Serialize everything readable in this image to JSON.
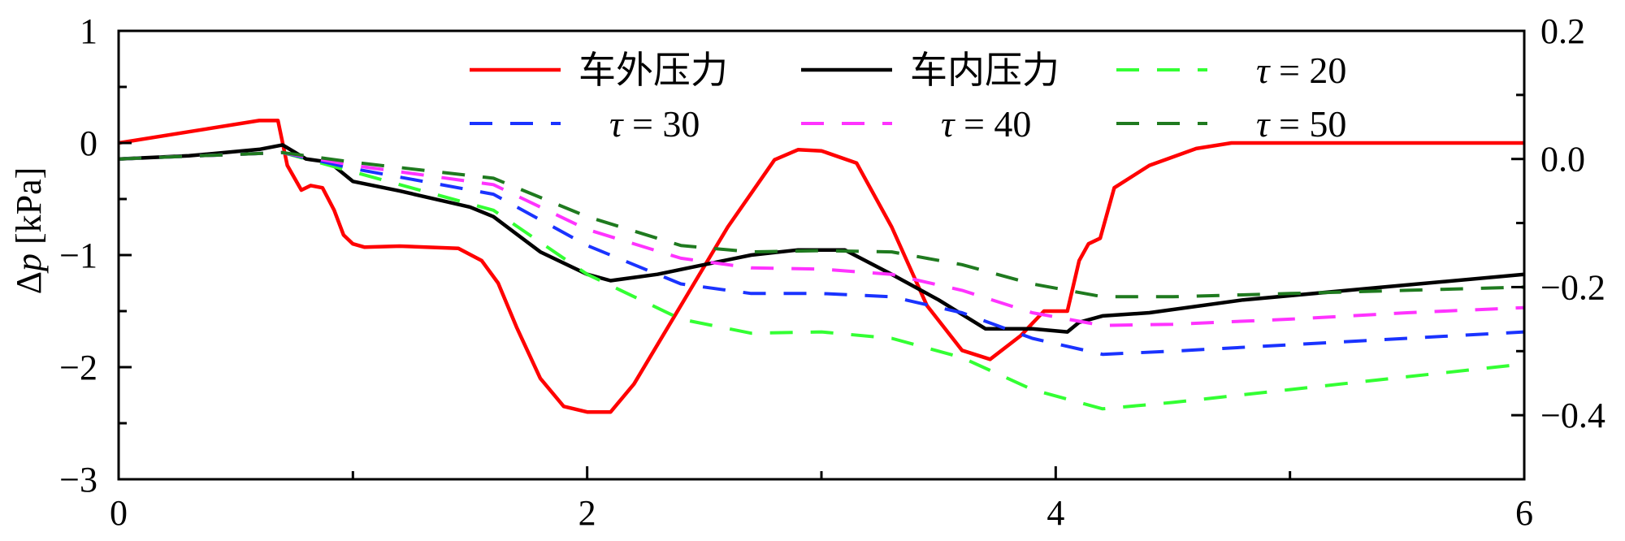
{
  "chart_data": {
    "type": "line",
    "xlabel": "",
    "ylabel_left": "Δp [kPa]",
    "ylabel_right": "",
    "xlim": [
      0,
      6
    ],
    "ylim_left": [
      -3,
      1
    ],
    "ylim_right": [
      -0.5,
      0.2
    ],
    "x_ticks": [
      "0",
      "2",
      "4",
      "6"
    ],
    "x_tick_values": [
      0,
      2,
      4,
      6
    ],
    "y_left_ticks": [
      "1",
      "0",
      "−1",
      "−2",
      "−3"
    ],
    "y_left_tick_values": [
      1,
      0,
      -1,
      -2,
      -3
    ],
    "y_right_ticks": [
      "0.2",
      "0.0",
      "−0.2",
      "−0.4"
    ],
    "y_right_tick_values": [
      0.2,
      0.0,
      -0.2,
      -0.4
    ],
    "grid": false,
    "legend_placement": "top",
    "series": [
      {
        "name": "车外压力",
        "axis": "left",
        "color": "#ff0000",
        "dash": "solid",
        "x": [
          0,
          0.3,
          0.6,
          0.68,
          0.72,
          0.78,
          0.82,
          0.87,
          0.92,
          0.96,
          1.0,
          1.05,
          1.2,
          1.45,
          1.55,
          1.62,
          1.7,
          1.8,
          1.9,
          2.0,
          2.1,
          2.2,
          2.4,
          2.6,
          2.8,
          2.9,
          3.0,
          3.15,
          3.3,
          3.45,
          3.6,
          3.72,
          3.85,
          3.95,
          4.05,
          4.1,
          4.14,
          4.19,
          4.25,
          4.4,
          4.6,
          4.75,
          5.0,
          5.5,
          6.0
        ],
        "values": [
          0.0,
          0.1,
          0.2,
          0.2,
          -0.2,
          -0.42,
          -0.38,
          -0.4,
          -0.6,
          -0.82,
          -0.9,
          -0.93,
          -0.92,
          -0.94,
          -1.05,
          -1.25,
          -1.65,
          -2.1,
          -2.35,
          -2.4,
          -2.4,
          -2.15,
          -1.45,
          -0.75,
          -0.15,
          -0.06,
          -0.07,
          -0.18,
          -0.75,
          -1.45,
          -1.85,
          -1.93,
          -1.72,
          -1.5,
          -1.5,
          -1.05,
          -0.9,
          -0.85,
          -0.4,
          -0.2,
          -0.05,
          0.0,
          0.0,
          0.0,
          0.0
        ]
      },
      {
        "name": "车内压力",
        "axis": "right",
        "color": "#000000",
        "dash": "solid",
        "x": [
          0,
          0.3,
          0.6,
          0.7,
          0.8,
          0.9,
          1.0,
          1.2,
          1.5,
          1.6,
          1.8,
          2.0,
          2.1,
          2.3,
          2.5,
          2.7,
          2.9,
          3.1,
          3.3,
          3.5,
          3.7,
          3.9,
          4.05,
          4.1,
          4.2,
          4.4,
          4.8,
          5.4,
          6.0
        ],
        "values": [
          0.0,
          0.005,
          0.015,
          0.022,
          0.0,
          -0.005,
          -0.035,
          -0.05,
          -0.075,
          -0.09,
          -0.145,
          -0.18,
          -0.19,
          -0.18,
          -0.165,
          -0.15,
          -0.142,
          -0.142,
          -0.18,
          -0.22,
          -0.265,
          -0.265,
          -0.27,
          -0.255,
          -0.245,
          -0.24,
          -0.22,
          -0.2,
          -0.18
        ]
      },
      {
        "name": "τ = 20",
        "axis": "right",
        "color": "#33ff33",
        "dash": "dashed",
        "x": [
          0,
          0.7,
          1.0,
          1.6,
          2.0,
          2.4,
          2.7,
          3.0,
          3.3,
          3.6,
          3.9,
          4.2,
          4.5,
          5.0,
          5.5,
          6.0
        ],
        "values": [
          0.0,
          0.01,
          -0.02,
          -0.08,
          -0.18,
          -0.25,
          -0.272,
          -0.27,
          -0.28,
          -0.31,
          -0.36,
          -0.39,
          -0.38,
          -0.36,
          -0.34,
          -0.32
        ]
      },
      {
        "name": "τ = 30",
        "axis": "right",
        "color": "#1a33ff",
        "dash": "dashed",
        "x": [
          0,
          0.7,
          1.0,
          1.6,
          2.0,
          2.4,
          2.7,
          3.0,
          3.3,
          3.6,
          3.9,
          4.2,
          4.5,
          5.0,
          5.5,
          6.0
        ],
        "values": [
          0.0,
          0.01,
          -0.015,
          -0.055,
          -0.135,
          -0.195,
          -0.21,
          -0.21,
          -0.215,
          -0.24,
          -0.28,
          -0.305,
          -0.3,
          -0.29,
          -0.28,
          -0.27
        ]
      },
      {
        "name": "τ = 40",
        "axis": "right",
        "color": "#ff33ff",
        "dash": "dashed",
        "x": [
          0,
          0.7,
          1.0,
          1.6,
          2.0,
          2.4,
          2.7,
          3.0,
          3.3,
          3.6,
          3.9,
          4.2,
          4.5,
          5.0,
          5.5,
          6.0
        ],
        "values": [
          0.0,
          0.01,
          -0.01,
          -0.04,
          -0.11,
          -0.155,
          -0.17,
          -0.172,
          -0.18,
          -0.205,
          -0.24,
          -0.26,
          -0.258,
          -0.25,
          -0.24,
          -0.232
        ]
      },
      {
        "name": "τ = 50",
        "axis": "right",
        "color": "#1f7a1f",
        "dash": "dashed",
        "x": [
          0,
          0.7,
          1.0,
          1.6,
          2.0,
          2.4,
          2.7,
          3.0,
          3.3,
          3.6,
          3.9,
          4.2,
          4.5,
          5.0,
          5.5,
          6.0
        ],
        "values": [
          0.0,
          0.01,
          -0.005,
          -0.03,
          -0.09,
          -0.135,
          -0.145,
          -0.143,
          -0.145,
          -0.165,
          -0.195,
          -0.215,
          -0.215,
          -0.21,
          -0.205,
          -0.2
        ]
      }
    ]
  },
  "legend": {
    "items": [
      {
        "label": "车外压力",
        "tau": false
      },
      {
        "label": "车内压力",
        "tau": false
      },
      {
        "label": "τ = 20",
        "tau": true
      },
      {
        "label": "τ = 30",
        "tau": true
      },
      {
        "label": "τ = 40",
        "tau": true
      },
      {
        "label": "τ = 50",
        "tau": true
      }
    ]
  }
}
